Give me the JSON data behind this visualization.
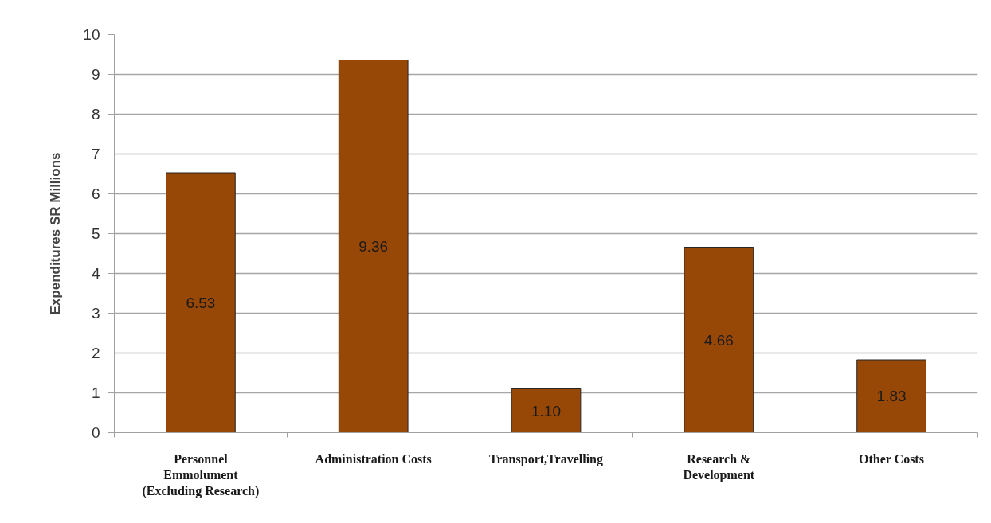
{
  "chart_data": {
    "type": "bar",
    "ylabel": "Expenditures SR Millions",
    "categories": [
      "Personnel\nEmmolument\n(Excluding Research)",
      "Administration Costs",
      "Transport,Travelling",
      "Research &\nDevelopment",
      "Other Costs"
    ],
    "values": [
      6.53,
      9.36,
      1.1,
      4.66,
      1.83
    ],
    "value_labels": [
      "6.53",
      "9.36",
      "1.10",
      "4.66",
      "1.83"
    ],
    "color": "#974706",
    "ylim": [
      0,
      10
    ],
    "yticks": [
      0,
      1,
      2,
      3,
      4,
      5,
      6,
      7,
      8,
      9,
      10
    ],
    "grid": "y"
  }
}
